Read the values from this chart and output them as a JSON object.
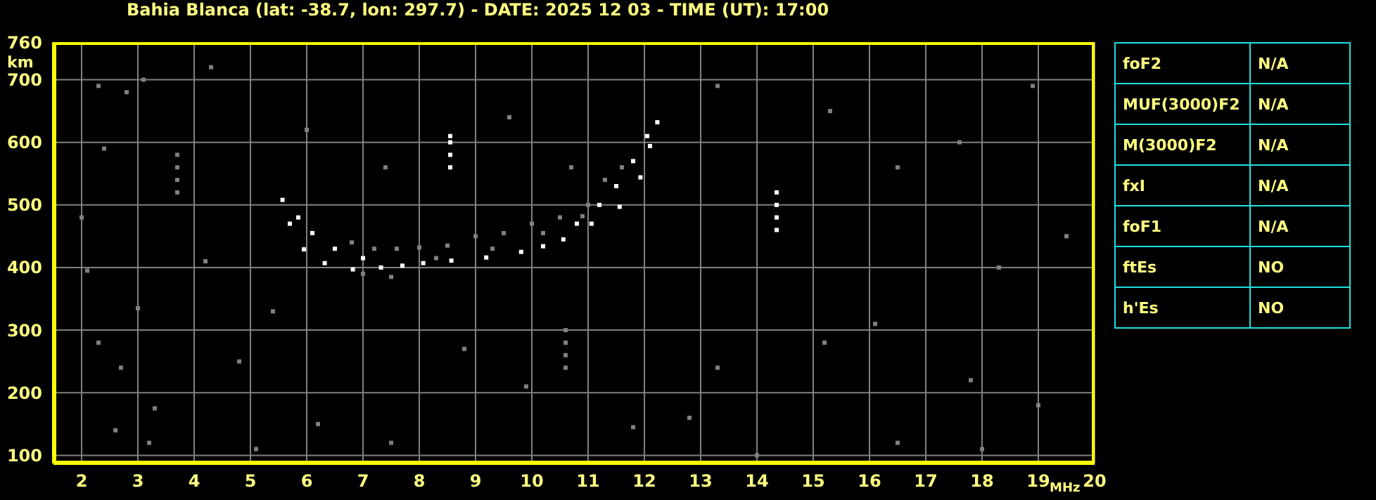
{
  "chart_data": [
    {
      "type": "scatter",
      "title": "Bahia Blanca (lat: -38.7, lon: 297.7) - DATE: 2025 12 03 - TIME (UT): 17:00",
      "xlabel": "MHz",
      "ylabel": "km",
      "xlim": [
        1.5,
        20
      ],
      "xticks": [
        2,
        3,
        4,
        5,
        6,
        7,
        8,
        9,
        10,
        11,
        12,
        13,
        14,
        15,
        16,
        17,
        18,
        19,
        20
      ],
      "ylim": [
        87,
        760
      ],
      "yticks": [
        100,
        200,
        300,
        400,
        500,
        600,
        700,
        760
      ],
      "grid": true,
      "marker": "square",
      "series": [
        {
          "color": "#ffffff",
          "x": [
            5.57,
            5.7,
            5.95,
            6.32,
            6.82,
            7.32,
            7.7,
            8.07,
            8.57,
            9.19,
            9.81,
            10.2,
            10.56,
            11.06,
            11.56,
            11.93,
            12.1,
            12.23
          ],
          "values": [
            508,
            470,
            429,
            407,
            397,
            400,
            403,
            407,
            411,
            416,
            425,
            434,
            445,
            470,
            497,
            544,
            594,
            632
          ]
        },
        {
          "color": "#ffffff",
          "x": [
            5.85,
            6.1,
            6.5,
            7.0,
            10.8,
            11.2,
            11.5,
            11.8,
            12.05
          ],
          "values": [
            480,
            455,
            430,
            415,
            470,
            500,
            530,
            570,
            610
          ]
        },
        {
          "color": "#808080",
          "x": [
            6.8,
            7.2,
            7.6,
            8.0,
            8.5,
            9.0,
            9.5,
            10.0,
            10.5,
            11.0,
            11.3,
            11.6,
            7.0,
            7.5,
            8.3,
            9.3,
            10.2,
            10.9
          ],
          "values": [
            440,
            430,
            430,
            432,
            435,
            450,
            455,
            470,
            480,
            500,
            540,
            560,
            390,
            385,
            415,
            430,
            455,
            482
          ]
        },
        {
          "color": "#ffffff",
          "x": [
            8.55,
            8.55,
            8.55,
            8.55,
            14.35,
            14.35,
            14.35,
            14.35
          ],
          "values": [
            560,
            580,
            600,
            610,
            460,
            480,
            500,
            520
          ]
        },
        {
          "color": "#808080",
          "x": [
            3.7,
            3.7,
            3.7,
            3.7,
            10.6,
            10.6,
            10.6,
            10.6,
            2.3,
            2.8,
            3.1,
            4.3,
            2.4,
            2.0,
            2.1,
            3.0,
            2.3,
            2.7,
            3.3,
            2.6,
            3.2,
            5.1,
            6.2,
            4.8,
            5.4,
            6.0,
            7.4,
            9.6,
            10.7,
            13.3,
            15.3,
            16.5,
            17.6,
            18.9,
            19.5,
            18.3,
            16.1,
            15.2,
            17.8,
            19.0,
            14.0,
            13.3,
            12.8,
            16.5,
            18.0,
            8.8,
            9.9,
            11.8,
            7.5,
            4.2
          ],
          "values": [
            520,
            540,
            560,
            580,
            240,
            260,
            280,
            300,
            690,
            680,
            700,
            720,
            590,
            480,
            395,
            335,
            280,
            240,
            175,
            140,
            120,
            110,
            150,
            250,
            330,
            620,
            560,
            640,
            560,
            690,
            650,
            560,
            600,
            690,
            450,
            400,
            310,
            280,
            220,
            180,
            100,
            240,
            160,
            120,
            110,
            270,
            210,
            145,
            120,
            410
          ]
        }
      ]
    },
    {
      "type": "other",
      "y_categories": [
        "foF2",
        "MUF(3000)F2",
        "M(3000)F2",
        "fxI",
        "foF1",
        "ftEs",
        "h'Es"
      ],
      "cell_labels": [
        [
          "N/A"
        ],
        [
          "N/A"
        ],
        [
          "N/A"
        ],
        [
          "N/A"
        ],
        [
          "N/A"
        ],
        [
          "NO"
        ],
        [
          "NO"
        ]
      ]
    }
  ]
}
